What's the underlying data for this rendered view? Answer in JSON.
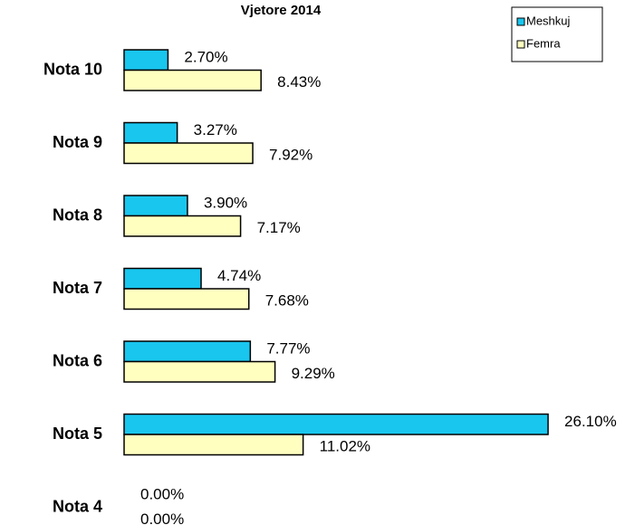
{
  "chart_data": {
    "type": "hbar",
    "title": "Vjetore 2014",
    "categories": [
      "Nota 10",
      "Nota 9",
      "Nota 8",
      "Nota 7",
      "Nota 6",
      "Nota 5",
      "Nota 4"
    ],
    "series": [
      {
        "name": "Meshkuj",
        "color": "#19c6ee",
        "values": [
          2.7,
          3.27,
          3.9,
          4.74,
          7.77,
          26.1,
          0.0
        ],
        "value_labels": [
          "2.70%",
          "3.27%",
          "3.90%",
          "4.74%",
          "7.77%",
          "26.10%",
          "0.00%"
        ]
      },
      {
        "name": "Femra",
        "color": "#ffffc0",
        "values": [
          8.43,
          7.92,
          7.17,
          7.68,
          9.29,
          11.02,
          0.0
        ],
        "value_labels": [
          "8.43%",
          "7.92%",
          "7.17%",
          "7.68%",
          "9.29%",
          "11.02%",
          "0.00%"
        ]
      }
    ],
    "xlim": [
      0,
      30
    ],
    "legend": "top-right"
  }
}
